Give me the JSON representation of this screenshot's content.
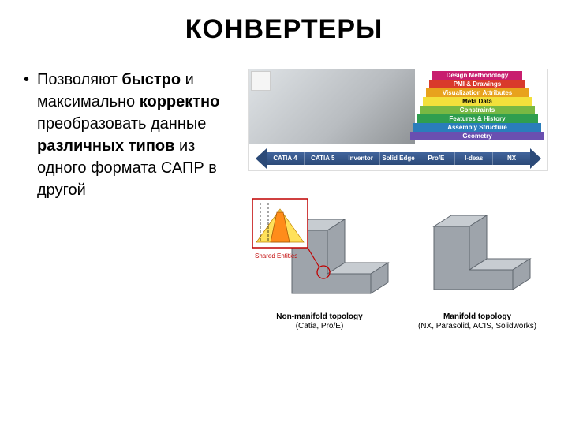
{
  "title": "КОНВЕРТЕРЫ",
  "bullet": {
    "parts": [
      {
        "t": "Позволяют ",
        "b": false
      },
      {
        "t": "быстро",
        "b": true
      },
      {
        "t": " и максимально ",
        "b": false
      },
      {
        "t": "корректно",
        "b": true
      },
      {
        "t": " преобразовать данные ",
        "b": false
      },
      {
        "t": "различных типов",
        "b": true
      },
      {
        "t": " из одного формата САПР в другой",
        "b": false
      }
    ]
  },
  "layers": [
    {
      "label": "Design Methodology",
      "color": "#c81e6e"
    },
    {
      "label": "PMI & Drawings",
      "color": "#d93a2b"
    },
    {
      "label": "Visualization Attributes",
      "color": "#e8a21d"
    },
    {
      "label": "Meta Data",
      "color": "#f3e03b",
      "text": "#000000"
    },
    {
      "label": "Constraints",
      "color": "#78b843"
    },
    {
      "label": "Features & History",
      "color": "#2f9e4f"
    },
    {
      "label": "Assembly Structure",
      "color": "#2a7dbb"
    },
    {
      "label": "Geometry",
      "color": "#6a4fb0"
    }
  ],
  "arrow_items": [
    "CATIA 4",
    "CATIA 5",
    "Inventor",
    "Solid Edge",
    "Pro/E",
    "I-deas",
    "NX"
  ],
  "arrow_color": "#2c4a78",
  "topo": {
    "shared_label": "Shared Entities",
    "nonmanifold": {
      "title": "Non-manifold topology",
      "sub": "(Catia, Pro/E)"
    },
    "manifold": {
      "title": "Manifold topology",
      "sub": "(NX, Parasolid, ACIS, Solidworks)"
    }
  },
  "colors": {
    "solid_fill": "#9ea4ab",
    "solid_fill_light": "#c7ccd1",
    "solid_edge": "#5f666e",
    "callout_border": "#c00000",
    "detail_orange": "#ff8c1a",
    "detail_yellow": "#ffe15a"
  }
}
